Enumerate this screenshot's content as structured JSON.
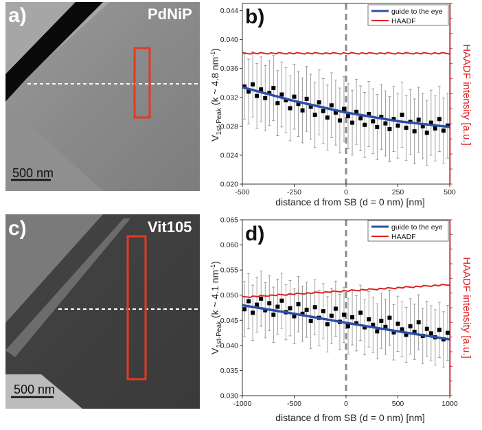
{
  "colors": {
    "fit": "#2b4fa8",
    "haadf": "#e02020",
    "points": "#000000",
    "errorbar": "#8a8a8a",
    "sb_line": "#8a8a8a",
    "box": "#e53a20"
  },
  "panels": {
    "a": {
      "label": "a)",
      "sample": "PdNiP",
      "scale_bar": "500  nm"
    },
    "c": {
      "label": "c)",
      "sample": "Vit105",
      "scale_bar": "500  nm"
    }
  },
  "chart_data": [
    {
      "panel": "b)",
      "type": "scatter",
      "ylabel_main": "V",
      "ylabel_sub": "1st-Peak",
      "ylabel_tail": " (k ~ 4.8 nm",
      "ylabel_sup": "-1",
      "ylabel_close": ")",
      "y2label": "HAADF intensity [a.u.]",
      "xlabel": "distance d from SB (d = 0 nm) [nm]",
      "xlim": [
        -500,
        500
      ],
      "ylim": [
        0.02,
        0.045
      ],
      "xticks": [
        -500,
        -250,
        0,
        250,
        500
      ],
      "xtick_labels": [
        "-500",
        "-250",
        "0",
        "250",
        "500"
      ],
      "yticks": [
        0.02,
        0.024,
        0.028,
        0.032,
        0.036,
        0.04,
        0.044
      ],
      "ytick_labels": [
        "0.020",
        "0.024",
        "0.028",
        "0.032",
        "0.036",
        "0.040",
        "0.044"
      ],
      "legend": [
        {
          "name": "guide to the eye",
          "color": "#2b4fa8"
        },
        {
          "name": "HAADF",
          "color": "#e02020"
        }
      ],
      "fit": {
        "name": "guide to the eye",
        "x": [
          -500,
          -250,
          0,
          250,
          500
        ],
        "y": [
          0.0334,
          0.0315,
          0.0299,
          0.0287,
          0.0279
        ]
      },
      "haadf": {
        "name": "HAADF",
        "x": [
          -500,
          500
        ],
        "y": [
          0.0381,
          0.0381
        ]
      },
      "points": {
        "x": [
          -490,
          -470,
          -450,
          -430,
          -410,
          -390,
          -370,
          -350,
          -330,
          -310,
          -290,
          -270,
          -250,
          -230,
          -210,
          -190,
          -170,
          -150,
          -130,
          -110,
          -90,
          -70,
          -50,
          -30,
          -10,
          10,
          30,
          50,
          70,
          90,
          110,
          130,
          150,
          170,
          190,
          210,
          230,
          250,
          270,
          290,
          310,
          330,
          350,
          370,
          390,
          410,
          430,
          450,
          470,
          490
        ],
        "y": [
          0.0335,
          0.0328,
          0.0338,
          0.0322,
          0.0331,
          0.0319,
          0.0326,
          0.0333,
          0.0312,
          0.0324,
          0.0316,
          0.0305,
          0.0321,
          0.0311,
          0.0302,
          0.0318,
          0.0307,
          0.0296,
          0.0313,
          0.0301,
          0.0292,
          0.0309,
          0.0299,
          0.0288,
          0.0304,
          0.0294,
          0.0285,
          0.03,
          0.0291,
          0.0282,
          0.0297,
          0.0287,
          0.0279,
          0.0293,
          0.0284,
          0.0276,
          0.029,
          0.0281,
          0.0296,
          0.0278,
          0.0286,
          0.0273,
          0.0289,
          0.028,
          0.0271,
          0.0285,
          0.0277,
          0.029,
          0.0274,
          0.0281
        ],
        "err": 0.0045
      },
      "sb_line_x": 0
    },
    {
      "panel": "d)",
      "type": "scatter",
      "ylabel_main": "V",
      "ylabel_sub": "1st-Peak",
      "ylabel_tail": " (k ~ 4.1 nm",
      "ylabel_sup": "-1",
      "ylabel_close": ")",
      "y2label": "HAADF intensity [a.u.]",
      "xlabel": "distance d from SB (d = 0 nm) [nm]",
      "xlim": [
        -1000,
        1000
      ],
      "ylim": [
        0.03,
        0.065
      ],
      "xticks": [
        -1000,
        -500,
        0,
        500,
        1000
      ],
      "xtick_labels": [
        "-1000",
        "-500",
        "0",
        "500",
        "1000"
      ],
      "yticks": [
        0.03,
        0.035,
        0.04,
        0.045,
        0.05,
        0.055,
        0.06,
        0.065
      ],
      "ytick_labels": [
        "0.030",
        "0.035",
        "0.040",
        "0.045",
        "0.050",
        "0.055",
        "0.060",
        "0.065"
      ],
      "legend": [
        {
          "name": "guide to the eye",
          "color": "#2b4fa8"
        },
        {
          "name": "HAADF",
          "color": "#e02020"
        }
      ],
      "fit": {
        "name": "guide to the eye",
        "x": [
          -1000,
          -500,
          0,
          500,
          1000
        ],
        "y": [
          0.048,
          0.0463,
          0.0445,
          0.0428,
          0.0412
        ]
      },
      "haadf": {
        "name": "HAADF",
        "x": [
          -1000,
          1000
        ],
        "y": [
          0.0496,
          0.0521
        ]
      },
      "points": {
        "x": [
          -980,
          -940,
          -900,
          -860,
          -820,
          -780,
          -740,
          -700,
          -660,
          -620,
          -580,
          -540,
          -500,
          -460,
          -420,
          -380,
          -340,
          -300,
          -260,
          -220,
          -180,
          -140,
          -100,
          -60,
          -20,
          20,
          60,
          100,
          140,
          180,
          220,
          260,
          300,
          340,
          380,
          420,
          460,
          500,
          540,
          580,
          620,
          660,
          700,
          740,
          780,
          820,
          860,
          900,
          940,
          980
        ],
        "y": [
          0.0472,
          0.0488,
          0.0465,
          0.0481,
          0.0493,
          0.047,
          0.0484,
          0.0461,
          0.0477,
          0.0489,
          0.0466,
          0.0474,
          0.0458,
          0.0482,
          0.0463,
          0.0471,
          0.0449,
          0.0476,
          0.0455,
          0.0468,
          0.0442,
          0.0459,
          0.0473,
          0.0447,
          0.0461,
          0.0438,
          0.0456,
          0.0444,
          0.0465,
          0.0436,
          0.0452,
          0.0441,
          0.0428,
          0.0449,
          0.0437,
          0.0455,
          0.0426,
          0.0443,
          0.0432,
          0.0421,
          0.0438,
          0.0427,
          0.0446,
          0.0419,
          0.0433,
          0.0424,
          0.0416,
          0.0431,
          0.0412,
          0.0425
        ],
        "err": 0.0055
      },
      "sb_line_x": 0
    }
  ]
}
